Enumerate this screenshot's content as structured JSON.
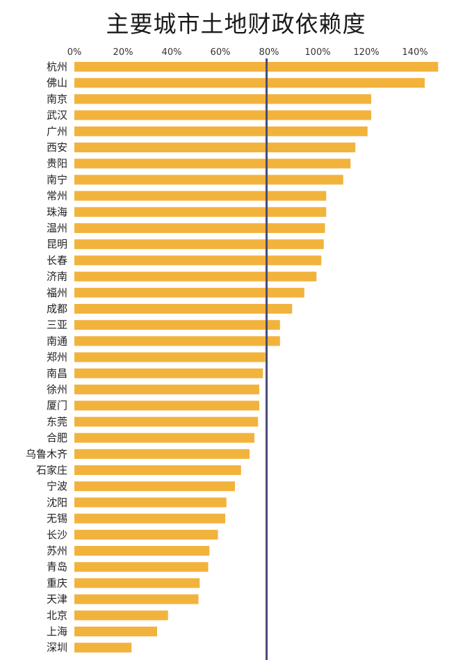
{
  "chart_data": {
    "type": "bar",
    "orientation": "horizontal",
    "title": "主要城市土地财政依赖度",
    "xlabel": "",
    "ylabel": "",
    "xlim": [
      0,
      150
    ],
    "x_ticks": [
      "0%",
      "20%",
      "40%",
      "60%",
      "80%",
      "100%",
      "120%",
      "140%"
    ],
    "x_tick_values": [
      0,
      20,
      40,
      60,
      80,
      100,
      120,
      140
    ],
    "reference_line": 79,
    "grid": false,
    "bar_color": "#f2b33d",
    "reference_line_color": "#4a4a78",
    "categories": [
      "杭州",
      "佛山",
      "南京",
      "武汉",
      "广州",
      "西安",
      "贵阳",
      "南宁",
      "常州",
      "珠海",
      "温州",
      "昆明",
      "长春",
      "济南",
      "福州",
      "成都",
      "三亚",
      "南通",
      "郑州",
      "南昌",
      "徐州",
      "厦门",
      "东莞",
      "合肥",
      "乌鲁木齐",
      "石家庄",
      "宁波",
      "沈阳",
      "无锡",
      "长沙",
      "苏州",
      "青岛",
      "重庆",
      "天津",
      "北京",
      "上海",
      "深圳"
    ],
    "values": [
      149.5,
      144,
      122,
      122,
      120.5,
      115.5,
      113.5,
      110.5,
      103.5,
      103.5,
      103,
      102.5,
      101.5,
      99.5,
      94.5,
      89.5,
      84.5,
      84.5,
      78.5,
      77.5,
      76,
      76,
      75.5,
      74,
      72,
      68.5,
      66,
      62.5,
      62,
      59,
      55.5,
      55,
      51.5,
      51,
      38.5,
      34,
      23.5
    ]
  }
}
